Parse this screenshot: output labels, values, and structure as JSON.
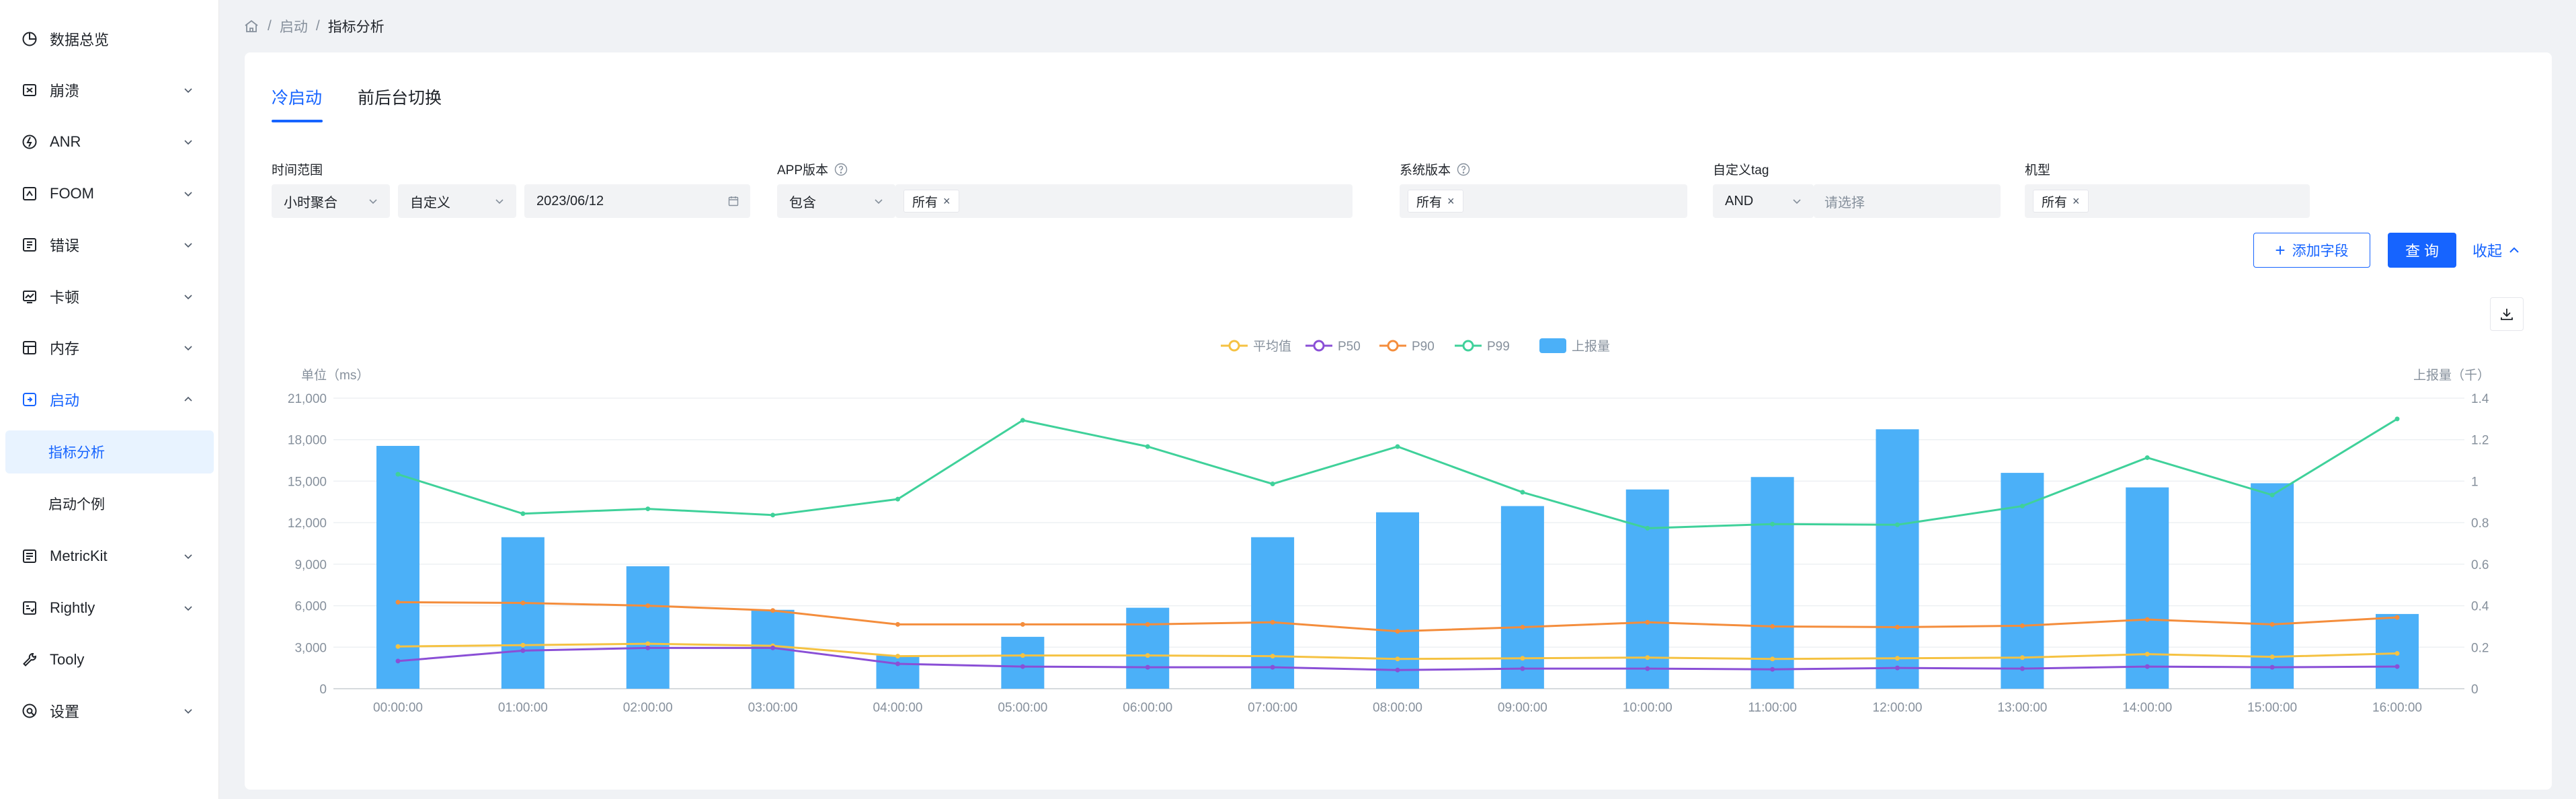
{
  "sidebar": {
    "items": [
      {
        "label": "数据总览",
        "icon": "pie-chart-icon",
        "chevron": false
      },
      {
        "label": "崩溃",
        "icon": "crash-icon",
        "chevron": true
      },
      {
        "label": "ANR",
        "icon": "anr-icon",
        "chevron": true
      },
      {
        "label": "FOOM",
        "icon": "foom-icon",
        "chevron": true
      },
      {
        "label": "错误",
        "icon": "error-icon",
        "chevron": true
      },
      {
        "label": "卡顿",
        "icon": "lag-icon",
        "chevron": true
      },
      {
        "label": "内存",
        "icon": "memory-icon",
        "chevron": true
      },
      {
        "label": "启动",
        "icon": "launch-icon",
        "chevron": true,
        "expanded": true
      },
      {
        "label": "MetricKit",
        "icon": "metrickit-icon",
        "chevron": true
      },
      {
        "label": "Rightly",
        "icon": "rightly-icon",
        "chevron": true
      },
      {
        "label": "Tooly",
        "icon": "wrench-icon",
        "chevron": false
      },
      {
        "label": "设置",
        "icon": "settings-icon",
        "chevron": true
      }
    ],
    "sub_items": [
      {
        "label": "指标分析",
        "selected": true
      },
      {
        "label": "启动个例",
        "selected": false
      }
    ]
  },
  "breadcrumb": {
    "items": [
      "启动",
      "指标分析"
    ]
  },
  "tabs": [
    {
      "label": "冷启动",
      "active": true
    },
    {
      "label": "前后台切换",
      "active": false
    }
  ],
  "filters": {
    "time_range": {
      "label": "时间范围",
      "aggregation": "小时聚合",
      "mode": "自定义",
      "date": "2023/06/12"
    },
    "app_version": {
      "label": "APP版本",
      "operator": "包含",
      "tag": "所有"
    },
    "os_version": {
      "label": "系统版本",
      "tag": "所有"
    },
    "custom_tag": {
      "label": "自定义tag",
      "operator": "AND",
      "placeholder": "请选择"
    },
    "device_model": {
      "label": "机型",
      "tag": "所有"
    }
  },
  "actions": {
    "add_field": "添加字段",
    "query": "查 询",
    "collapse": "收起"
  },
  "colors": {
    "accent": "#1664ff",
    "avg": "#f5c242",
    "p50": "#8a4fd6",
    "p90": "#f48d3c",
    "p99": "#3fd19a",
    "bar": "#4bb0f8"
  },
  "chart_data": {
    "type": "bar",
    "left_axis_label": "单位（ms）",
    "right_axis_label": "上报量（千）",
    "ylim_left": [
      0,
      21000
    ],
    "yticks_left": [
      "0",
      "3,000",
      "6,000",
      "9,000",
      "12,000",
      "15,000",
      "18,000",
      "21,000"
    ],
    "ylim_right": [
      0,
      1.4
    ],
    "yticks_right": [
      "0",
      "0.2",
      "0.4",
      "0.6",
      "0.8",
      "1",
      "1.2",
      "1.4"
    ],
    "categories": [
      "00:00:00",
      "01:00:00",
      "02:00:00",
      "03:00:00",
      "04:00:00",
      "05:00:00",
      "06:00:00",
      "07:00:00",
      "08:00:00",
      "09:00:00",
      "10:00:00",
      "11:00:00",
      "12:00:00",
      "13:00:00",
      "14:00:00",
      "15:00:00",
      "16:00:00"
    ],
    "legend": [
      "平均值",
      "P50",
      "P90",
      "P99",
      "上报量"
    ],
    "bars": {
      "name": "上报量",
      "axis": "right",
      "values": [
        1.17,
        0.73,
        0.59,
        0.38,
        0.16,
        0.25,
        0.39,
        0.73,
        0.85,
        0.88,
        0.96,
        1.02,
        1.25,
        1.04,
        0.97,
        0.99,
        0.36
      ]
    },
    "series": [
      {
        "name": "平均值",
        "axis": "left",
        "values": [
          3050,
          3150,
          3250,
          3100,
          2350,
          2400,
          2400,
          2350,
          2150,
          2200,
          2250,
          2150,
          2200,
          2250,
          2500,
          2300,
          2550
        ]
      },
      {
        "name": "P50",
        "axis": "left",
        "values": [
          2000,
          2750,
          2950,
          2950,
          1800,
          1600,
          1550,
          1550,
          1350,
          1450,
          1450,
          1400,
          1500,
          1450,
          1600,
          1550,
          1600
        ]
      },
      {
        "name": "P90",
        "axis": "left",
        "values": [
          6250,
          6200,
          6000,
          5650,
          4650,
          4650,
          4650,
          4800,
          4150,
          4450,
          4800,
          4500,
          4450,
          4550,
          5000,
          4650,
          5150
        ]
      },
      {
        "name": "P99",
        "axis": "left",
        "values": [
          15500,
          12650,
          13000,
          12550,
          13700,
          19400,
          17500,
          14800,
          17500,
          14200,
          11600,
          11900,
          11850,
          13200,
          16700,
          14000,
          19500
        ]
      }
    ]
  }
}
